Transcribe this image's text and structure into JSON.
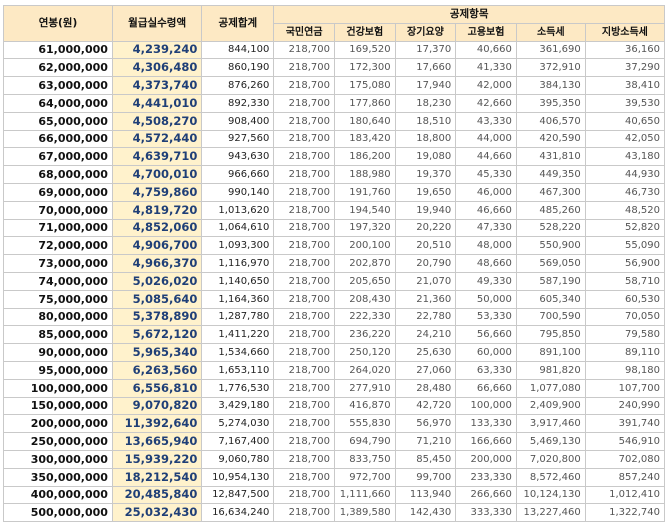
{
  "headers": {
    "annual": "연봉(원)",
    "net_monthly": "월급실수령액",
    "total_deduction": "공제합계",
    "deduction_group": "공제항목",
    "items": [
      "국민연금",
      "건강보험",
      "장기요양",
      "고용보험",
      "소득세",
      "지방소득세"
    ]
  },
  "rows": [
    [
      "61,000,000",
      "4,239,240",
      "844,100",
      "218,700",
      "169,520",
      "17,370",
      "40,660",
      "361,690",
      "36,160"
    ],
    [
      "62,000,000",
      "4,306,480",
      "860,190",
      "218,700",
      "172,300",
      "17,660",
      "41,330",
      "372,910",
      "37,290"
    ],
    [
      "63,000,000",
      "4,373,740",
      "876,260",
      "218,700",
      "175,080",
      "17,940",
      "42,000",
      "384,130",
      "38,410"
    ],
    [
      "64,000,000",
      "4,441,010",
      "892,330",
      "218,700",
      "177,860",
      "18,230",
      "42,660",
      "395,350",
      "39,530"
    ],
    [
      "65,000,000",
      "4,508,270",
      "908,400",
      "218,700",
      "180,640",
      "18,510",
      "43,330",
      "406,570",
      "40,650"
    ],
    [
      "66,000,000",
      "4,572,440",
      "927,560",
      "218,700",
      "183,420",
      "18,800",
      "44,000",
      "420,590",
      "42,050"
    ],
    [
      "67,000,000",
      "4,639,710",
      "943,630",
      "218,700",
      "186,200",
      "19,080",
      "44,660",
      "431,810",
      "43,180"
    ],
    [
      "68,000,000",
      "4,700,010",
      "966,660",
      "218,700",
      "188,980",
      "19,370",
      "45,330",
      "449,350",
      "44,930"
    ],
    [
      "69,000,000",
      "4,759,860",
      "990,140",
      "218,700",
      "191,760",
      "19,650",
      "46,000",
      "467,300",
      "46,730"
    ],
    [
      "70,000,000",
      "4,819,720",
      "1,013,620",
      "218,700",
      "194,540",
      "19,940",
      "46,660",
      "485,260",
      "48,520"
    ],
    [
      "71,000,000",
      "4,852,060",
      "1,064,610",
      "218,700",
      "197,320",
      "20,220",
      "47,330",
      "528,220",
      "52,820"
    ],
    [
      "72,000,000",
      "4,906,700",
      "1,093,300",
      "218,700",
      "200,100",
      "20,510",
      "48,000",
      "550,900",
      "55,090"
    ],
    [
      "73,000,000",
      "4,966,370",
      "1,116,970",
      "218,700",
      "202,870",
      "20,790",
      "48,660",
      "569,050",
      "56,900"
    ],
    [
      "74,000,000",
      "5,026,020",
      "1,140,650",
      "218,700",
      "205,650",
      "21,070",
      "49,330",
      "587,190",
      "58,710"
    ],
    [
      "75,000,000",
      "5,085,640",
      "1,164,360",
      "218,700",
      "208,430",
      "21,360",
      "50,000",
      "605,340",
      "60,530"
    ],
    [
      "80,000,000",
      "5,378,890",
      "1,287,780",
      "218,700",
      "222,330",
      "22,780",
      "53,330",
      "700,590",
      "70,050"
    ],
    [
      "85,000,000",
      "5,672,120",
      "1,411,220",
      "218,700",
      "236,220",
      "24,210",
      "56,660",
      "795,850",
      "79,580"
    ],
    [
      "90,000,000",
      "5,965,340",
      "1,534,660",
      "218,700",
      "250,120",
      "25,630",
      "60,000",
      "891,100",
      "89,110"
    ],
    [
      "95,000,000",
      "6,263,560",
      "1,653,110",
      "218,700",
      "264,020",
      "27,060",
      "63,330",
      "981,820",
      "98,180"
    ],
    [
      "100,000,000",
      "6,556,810",
      "1,776,530",
      "218,700",
      "277,910",
      "28,480",
      "66,660",
      "1,077,080",
      "107,700"
    ],
    [
      "150,000,000",
      "9,070,820",
      "3,429,180",
      "218,700",
      "416,870",
      "42,720",
      "100,000",
      "2,409,900",
      "240,990"
    ],
    [
      "200,000,000",
      "11,392,640",
      "5,274,030",
      "218,700",
      "555,830",
      "56,970",
      "133,330",
      "3,917,460",
      "391,740"
    ],
    [
      "250,000,000",
      "13,665,940",
      "7,167,400",
      "218,700",
      "694,790",
      "71,210",
      "166,660",
      "5,469,130",
      "546,910"
    ],
    [
      "300,000,000",
      "15,939,220",
      "9,060,780",
      "218,700",
      "833,750",
      "85,450",
      "200,000",
      "7,020,800",
      "702,080"
    ],
    [
      "350,000,000",
      "18,212,540",
      "10,954,130",
      "218,700",
      "972,700",
      "99,700",
      "233,330",
      "8,572,460",
      "857,240"
    ],
    [
      "400,000,000",
      "20,485,840",
      "12,847,500",
      "218,700",
      "1,111,660",
      "113,940",
      "266,660",
      "10,124,130",
      "1,012,410"
    ],
    [
      "500,000,000",
      "25,032,430",
      "16,634,240",
      "218,700",
      "1,389,580",
      "142,430",
      "333,330",
      "13,227,460",
      "1,322,740"
    ]
  ]
}
